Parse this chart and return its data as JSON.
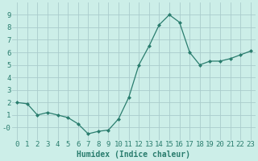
{
  "x": [
    0,
    1,
    2,
    3,
    4,
    5,
    6,
    7,
    8,
    9,
    10,
    11,
    12,
    13,
    14,
    15,
    16,
    17,
    18,
    19,
    20,
    21,
    22,
    23
  ],
  "y": [
    2.0,
    1.9,
    1.0,
    1.2,
    1.0,
    0.8,
    0.3,
    -0.5,
    -0.3,
    -0.2,
    0.7,
    2.4,
    5.0,
    6.5,
    8.2,
    9.0,
    8.4,
    6.0,
    5.0,
    5.3,
    5.3,
    5.5,
    5.8,
    6.1
  ],
  "xlabel": "Humidex (Indice chaleur)",
  "xlim": [
    -0.5,
    23.5
  ],
  "ylim": [
    -1.0,
    10.0
  ],
  "yticks": [
    0,
    1,
    2,
    3,
    4,
    5,
    6,
    7,
    8,
    9
  ],
  "ytick_labels": [
    "-0",
    "1",
    "2",
    "3",
    "4",
    "5",
    "6",
    "7",
    "8",
    "9"
  ],
  "xticks": [
    0,
    1,
    2,
    3,
    4,
    5,
    6,
    7,
    8,
    9,
    10,
    11,
    12,
    13,
    14,
    15,
    16,
    17,
    18,
    19,
    20,
    21,
    22,
    23
  ],
  "line_color": "#2a7d6e",
  "marker_color": "#2a7d6e",
  "bg_color": "#cceee8",
  "grid_color": "#aacccc",
  "xlabel_fontsize": 7,
  "tick_fontsize": 6.5
}
